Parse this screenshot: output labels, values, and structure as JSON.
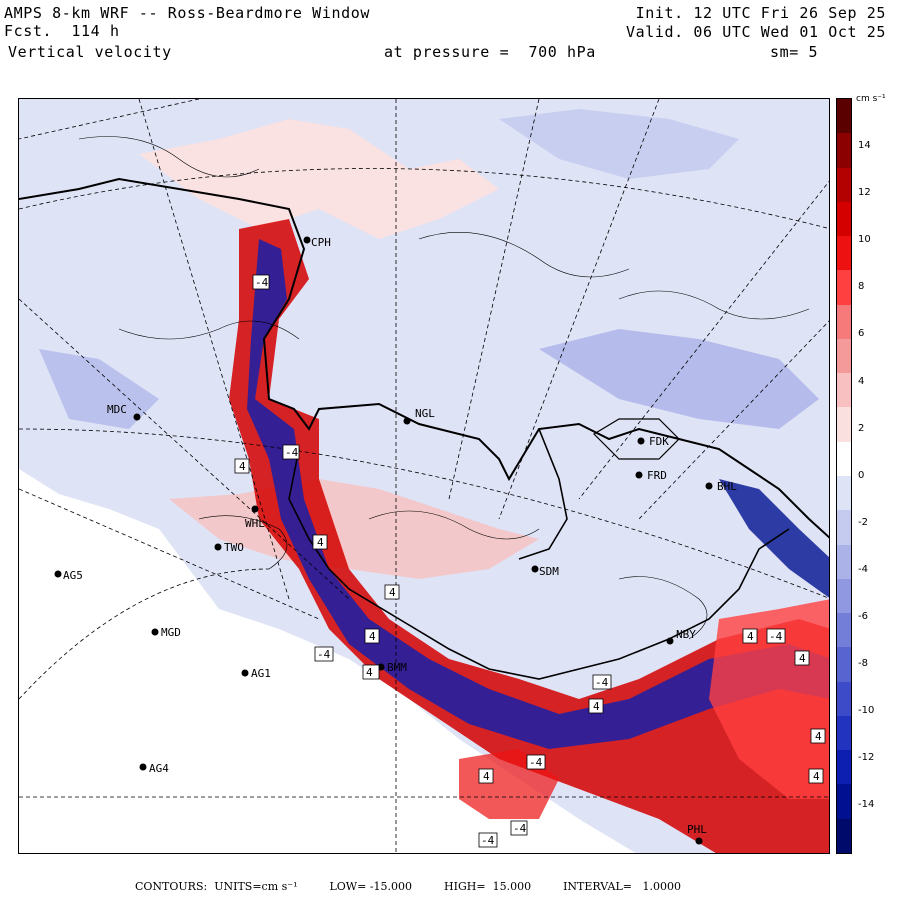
{
  "header": {
    "title": "AMPS 8-km WRF -- Ross-Beardmore Window",
    "forecast": "Fcst.  114 h",
    "field": "Vertical velocity",
    "init": "Init. 12 UTC Fri 26 Sep 25",
    "valid": "Valid. 06 UTC Wed 01 Oct 25",
    "pressure": "at pressure =  700 hPa",
    "smoothing": "sm= 5"
  },
  "colorbar": {
    "units": "cm s⁻¹",
    "labels": [
      "14",
      "12",
      "10",
      "8",
      "6",
      "4",
      "2",
      "0",
      "-2",
      "-4",
      "-6",
      "-8",
      "-10",
      "-12",
      "-14"
    ],
    "colors": [
      "#5a0000",
      "#8b0000",
      "#b30000",
      "#d40000",
      "#ee1111",
      "#ff4040",
      "#f77a7a",
      "#f59a9a",
      "#f8c0c0",
      "#fbe0e0",
      "#ffffff",
      "#dfe3f6",
      "#c5cbef",
      "#aab2e8",
      "#8f98e0",
      "#737ed8",
      "#5865d0",
      "#3d4bc8",
      "#2233c0",
      "#0d1fb0",
      "#001090",
      "#000a6a"
    ]
  },
  "footer": {
    "contours": "CONTOURS:  UNITS=cm s⁻¹",
    "low": "LOW= -15.000",
    "high": "HIGH=  15.000",
    "interval": "INTERVAL=   1.0000"
  },
  "stations": [
    {
      "code": "CPH"
    },
    {
      "code": "MDC"
    },
    {
      "code": "NGL"
    },
    {
      "code": "FDK"
    },
    {
      "code": "FRD"
    },
    {
      "code": "WHL"
    },
    {
      "code": "TWO"
    },
    {
      "code": "AG5"
    },
    {
      "code": "MGD"
    },
    {
      "code": "AG1"
    },
    {
      "code": "AG4"
    },
    {
      "code": "SDM"
    },
    {
      "code": "NBY"
    },
    {
      "code": "BMM"
    },
    {
      "code": "PHL"
    },
    {
      "code": "BHL"
    }
  ],
  "contour_labels": [
    "-4",
    "4",
    "-4",
    "4",
    "4",
    "4",
    "-4",
    "4",
    "4",
    "-4",
    "4",
    "4",
    "-4",
    "4",
    "-4",
    "4",
    "-4",
    "-4",
    "4"
  ]
}
